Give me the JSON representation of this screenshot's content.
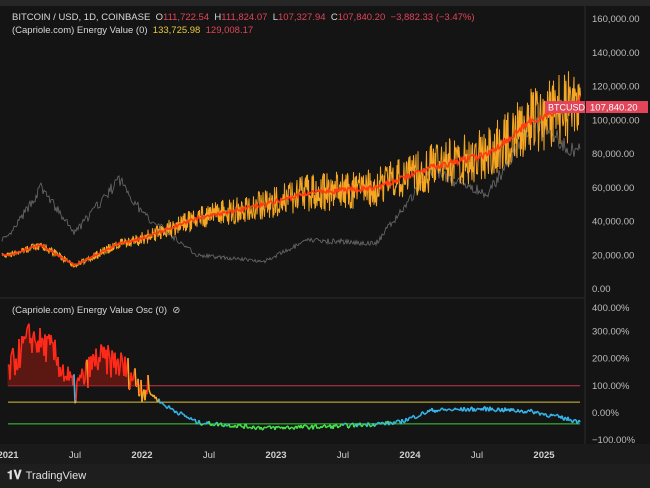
{
  "legend": {
    "symbol": "BITCOIN / USD, 1D, COINBASE",
    "o_label": "O",
    "o": "111,722.54",
    "h_label": "H",
    "h": "111,824.07",
    "l_label": "L",
    "l": "107,327.94",
    "c_label": "C",
    "c": "107,840.20",
    "chg": "−3,882.33 (−3.47%)",
    "energy_title": "(Capriole.com) Energy Value (0)",
    "energy_v1": "133,725.98",
    "energy_v2": "129,008.17",
    "osc_title": "(Capriole.com) Energy Value Osc (0)",
    "osc_icon": "eye-slash-icon"
  },
  "price_tag": {
    "label": "BTCUSD",
    "value": "107,840.20",
    "color": "#e0455a"
  },
  "branding": "TradingView",
  "chart_data": [
    {
      "type": "line",
      "pane": "price",
      "ylim": [
        0,
        160000
      ],
      "yticks": [
        "160,000.00",
        "140,000.00",
        "120,000.00",
        "100,000.00",
        "80,000.00",
        "60,000.00",
        "40,000.00",
        "20,000.00",
        "0.00"
      ],
      "x": [
        "2021-01",
        "2021-04",
        "2021-07",
        "2021-11",
        "2022-01",
        "2022-06",
        "2022-12",
        "2023-04",
        "2023-10",
        "2024-03",
        "2024-08",
        "2024-12",
        "2025-04",
        "2025-06"
      ],
      "series": [
        {
          "name": "BTCUSD",
          "color": "#8a8a8a",
          "values": [
            30000,
            60000,
            33000,
            65000,
            45000,
            20000,
            16500,
            29000,
            27000,
            70000,
            56000,
            100000,
            80000,
            107840
          ]
        },
        {
          "name": "Energy Value",
          "color": "#f5a623",
          "values": [
            20000,
            26000,
            14000,
            27000,
            30000,
            42000,
            50000,
            57000,
            60000,
            72000,
            80000,
            100000,
            110000,
            129008
          ]
        }
      ]
    },
    {
      "type": "line",
      "pane": "oscillator",
      "ylim": [
        -100,
        400
      ],
      "yticks": [
        "400.00%",
        "300.00%",
        "200.00%",
        "100.00%",
        "0.00%",
        "−100.00%"
      ],
      "x": [
        "2021-01",
        "2021-03",
        "2021-05",
        "2021-07",
        "2021-09",
        "2021-11",
        "2022-01",
        "2022-03",
        "2022-06",
        "2022-12",
        "2023-06",
        "2023-12",
        "2024-03",
        "2024-08",
        "2024-12",
        "2025-04",
        "2025-06"
      ],
      "values": [
        150,
        280,
        230,
        80,
        200,
        180,
        100,
        30,
        -35,
        -55,
        -50,
        -35,
        10,
        15,
        5,
        -30,
        -10
      ],
      "levels": [
        {
          "value": 100,
          "color": "#c2364a"
        },
        {
          "value": 40,
          "color": "#d4c23a"
        },
        {
          "value": -40,
          "color": "#3ccf3c"
        }
      ],
      "colors": {
        "high": "#ff2a1a",
        "mid": "#f5a623",
        "neutral": "#35b4ea",
        "low": "#45e04a"
      }
    },
    {
      "xticks": [
        "2021",
        "Jul",
        "2022",
        "Jul",
        "2023",
        "Jul",
        "2024",
        "Jul",
        "2025"
      ]
    }
  ]
}
